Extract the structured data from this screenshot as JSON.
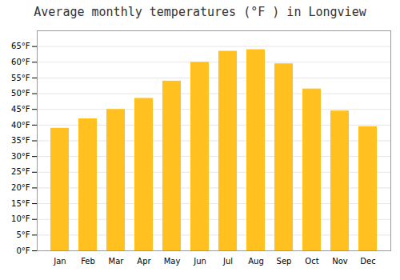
{
  "chart_data": {
    "type": "bar",
    "title": "Average monthly temperatures (°F ) in Longview",
    "categories": [
      "Jan",
      "Feb",
      "Mar",
      "Apr",
      "May",
      "Jun",
      "Jul",
      "Aug",
      "Sep",
      "Oct",
      "Nov",
      "Dec"
    ],
    "values": [
      39,
      42,
      45,
      48.5,
      54,
      60,
      63.5,
      64,
      59.5,
      51.5,
      44.5,
      39.5
    ],
    "color": "#FFC020",
    "ylim": [
      0,
      70
    ],
    "yticks": [
      {
        "value": 0,
        "label": "0°F"
      },
      {
        "value": 5,
        "label": "5°F"
      },
      {
        "value": 10,
        "label": "10°F"
      },
      {
        "value": 15,
        "label": "15°F"
      },
      {
        "value": 20,
        "label": "20°F"
      },
      {
        "value": 25,
        "label": "25°F"
      },
      {
        "value": 30,
        "label": "30°F"
      },
      {
        "value": 35,
        "label": "35°F"
      },
      {
        "value": 40,
        "label": "40°F"
      },
      {
        "value": 45,
        "label": "45°F"
      },
      {
        "value": 50,
        "label": "50°F"
      },
      {
        "value": 55,
        "label": "55°F"
      },
      {
        "value": 60,
        "label": "60°F"
      },
      {
        "value": 65,
        "label": "65°F"
      }
    ],
    "grid": true
  }
}
